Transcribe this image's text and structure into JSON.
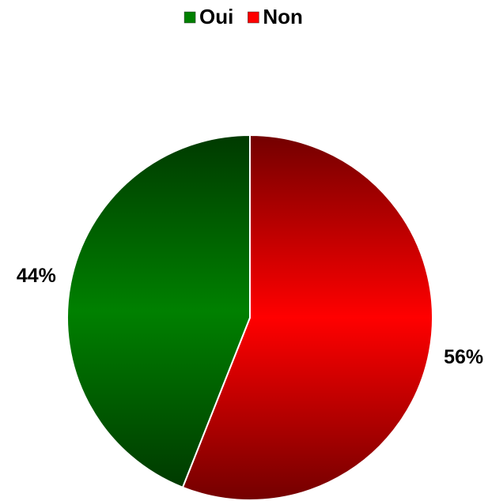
{
  "chart_data": {
    "type": "pie",
    "categories": [
      "Oui",
      "Non"
    ],
    "values": [
      44,
      56
    ],
    "value_labels": [
      "44%",
      "56%"
    ],
    "colors": [
      "#008000",
      "#ff0000"
    ],
    "legend": "top"
  }
}
